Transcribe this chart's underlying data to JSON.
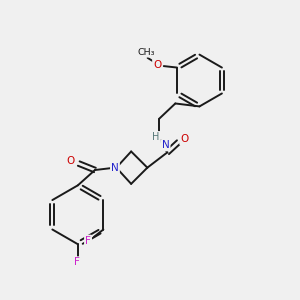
{
  "background_color": "#f0f0f0",
  "bond_color": "#1a1a1a",
  "bond_width": 1.4,
  "atom_colors": {
    "N": "#2222cc",
    "O": "#cc0000",
    "F": "#cc22cc",
    "C": "#1a1a1a",
    "H": "#557777"
  },
  "figsize": [
    3.0,
    3.0
  ],
  "dpi": 100,
  "xlim": [
    0,
    10
  ],
  "ylim": [
    0,
    10
  ]
}
